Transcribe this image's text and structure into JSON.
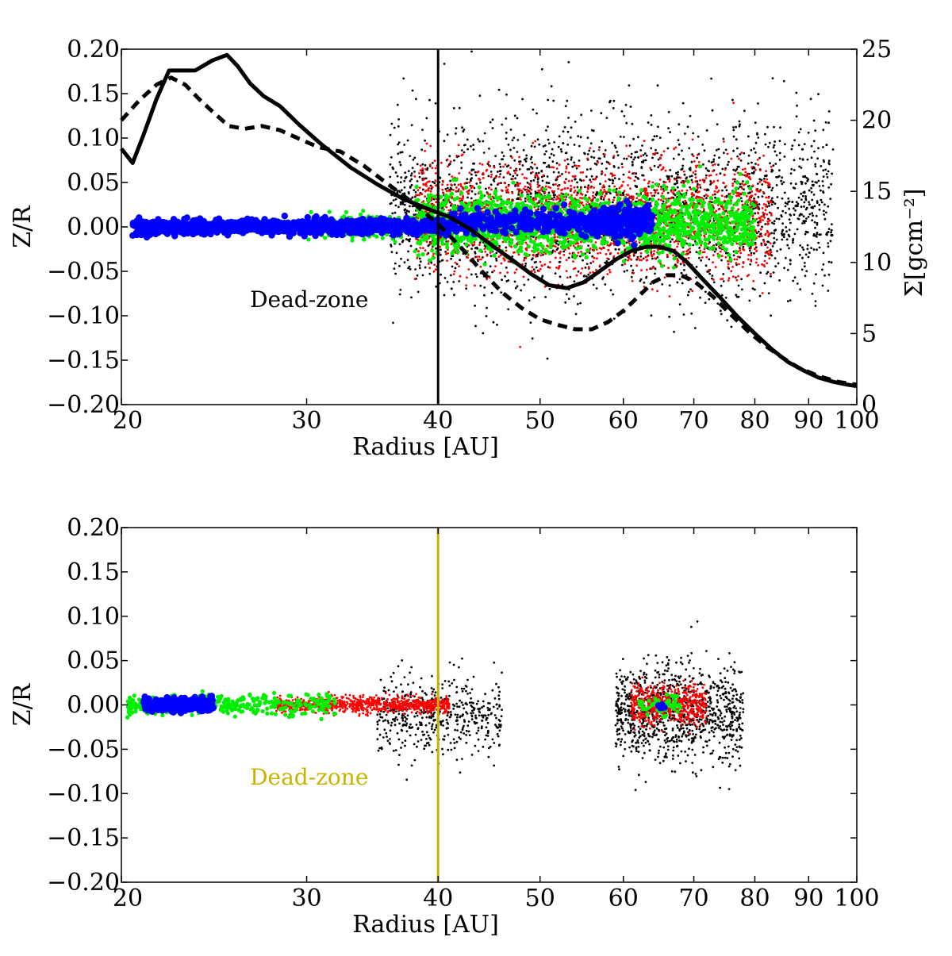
{
  "chart_data": [
    {
      "type": "scatter",
      "title": "",
      "xlabel": "Radius [AU]",
      "ylabel": "Z/R",
      "y2label": "Σ[gcm⁻²]",
      "x_scale": "log",
      "xlim": [
        20,
        100
      ],
      "ylim": [
        -0.2,
        0.2
      ],
      "y2lim": [
        0,
        25
      ],
      "x_ticks": [
        20,
        30,
        40,
        50,
        60,
        70,
        80,
        90,
        100
      ],
      "x_tick_labels": [
        "20",
        "30",
        "40",
        "50",
        "60",
        "70",
        "80",
        "90",
        "100"
      ],
      "y_ticks": [
        0.2,
        0.15,
        0.1,
        0.05,
        0.0,
        -0.05,
        -0.1,
        -0.15,
        -0.2
      ],
      "y_tick_labels": [
        "0.20",
        "0.15",
        "0.10",
        "0.05",
        "0.00",
        "−0.05",
        "−0.10",
        "−0.15",
        "−0.20"
      ],
      "y2_ticks": [
        25,
        20,
        15,
        10,
        5,
        0
      ],
      "y2_tick_labels": [
        "25",
        "20",
        "15",
        "10",
        "5",
        "0"
      ],
      "grid": false,
      "annotation": {
        "text": "Dead-zone",
        "x": 26.5,
        "y": -0.09,
        "color": "#000000"
      },
      "vline": {
        "x": 40,
        "color": "#000000"
      },
      "lines": [
        {
          "style": "solid",
          "color": "#000000",
          "axis": "y2",
          "x": [
            20,
            20.5,
            21,
            21.6,
            22.2,
            22.7,
            23.5,
            24.4,
            25.2,
            25.8,
            26.5,
            27.3,
            28.3,
            29.5,
            31,
            33,
            35,
            37,
            39,
            41,
            43,
            45,
            47,
            49,
            51,
            53,
            55,
            57,
            59,
            61,
            63,
            65,
            67,
            69,
            71,
            74,
            77,
            80,
            83,
            86,
            89,
            92,
            95,
            98,
            100
          ],
          "values": [
            18,
            17,
            19,
            21.5,
            23.5,
            23.5,
            23.5,
            24.2,
            24.6,
            23.8,
            22.6,
            21.7,
            21,
            19.7,
            18.3,
            16.7,
            15.5,
            14.5,
            13.8,
            13.2,
            12.3,
            11.2,
            10.2,
            9.2,
            8.4,
            8.2,
            8.6,
            9.4,
            10.2,
            10.8,
            11.1,
            11.1,
            10.8,
            10,
            9,
            7.6,
            6.2,
            5,
            3.9,
            3,
            2.4,
            1.9,
            1.6,
            1.4,
            1.3
          ]
        },
        {
          "style": "dashed",
          "color": "#000000",
          "axis": "y2",
          "x": [
            20,
            20.8,
            21.6,
            22.3,
            23,
            23.7,
            24.5,
            25.3,
            26.2,
            27.2,
            28.3,
            29.5,
            30.8,
            32.3,
            34,
            36,
            38,
            40,
            42,
            44,
            46,
            48,
            50,
            52,
            54,
            56,
            58,
            60,
            62,
            64,
            66,
            68,
            70,
            73,
            76,
            79,
            82,
            85,
            88,
            92,
            96,
            100
          ],
          "values": [
            20,
            21.4,
            22.5,
            23,
            22.5,
            21.5,
            20.5,
            19.6,
            19.4,
            19.6,
            19.3,
            18.7,
            18.1,
            17.8,
            16.8,
            15.4,
            14.1,
            12.7,
            11.1,
            9.4,
            7.9,
            6.8,
            6,
            5.6,
            5.3,
            5.3,
            5.8,
            6.6,
            7.6,
            8.6,
            9.1,
            9.1,
            8.7,
            7.6,
            6.3,
            5.1,
            4.1,
            3.3,
            2.6,
            2,
            1.6,
            1.4
          ]
        }
      ],
      "scatter_series": [
        {
          "color": "#000000",
          "size": "small",
          "clusters": [
            {
              "x_range": [
                36,
                95
              ],
              "y_center": 0.02,
              "y_spread": 0.09,
              "density": 2400
            }
          ]
        },
        {
          "color": "#ff0000",
          "size": "small",
          "clusters": [
            {
              "x_range": [
                38,
                83
              ],
              "y_center": 0.01,
              "y_spread": 0.055,
              "density": 2200
            }
          ]
        },
        {
          "color": "#00ee00",
          "size": "medium",
          "clusters": [
            {
              "x_range": [
                30,
                38
              ],
              "y_center": 0.0,
              "y_spread": 0.012,
              "density": 250
            },
            {
              "x_range": [
                38,
                80
              ],
              "y_center": 0.005,
              "y_spread": 0.03,
              "density": 1500
            }
          ]
        },
        {
          "color": "#0000ff",
          "size": "large",
          "clusters": [
            {
              "x_range": [
                20.5,
                41
              ],
              "y_center": 0.0,
              "y_spread": 0.007,
              "density": 1100
            },
            {
              "x_range": [
                41,
                63
              ],
              "y_center": 0.005,
              "y_spread": 0.012,
              "density": 350
            },
            {
              "x_range": [
                56,
                64
              ],
              "y_center": 0.005,
              "y_spread": 0.014,
              "density": 250
            }
          ]
        }
      ]
    },
    {
      "type": "scatter",
      "title": "",
      "xlabel": "Radius [AU]",
      "ylabel": "Z/R",
      "x_scale": "log",
      "xlim": [
        20,
        100
      ],
      "ylim": [
        -0.2,
        0.2
      ],
      "x_ticks": [
        20,
        30,
        40,
        50,
        60,
        70,
        80,
        90,
        100
      ],
      "x_tick_labels": [
        "20",
        "30",
        "40",
        "50",
        "60",
        "70",
        "80",
        "90",
        "100"
      ],
      "y_ticks": [
        0.2,
        0.15,
        0.1,
        0.05,
        0.0,
        -0.05,
        -0.1,
        -0.15,
        -0.2
      ],
      "y_tick_labels": [
        "0.20",
        "0.15",
        "0.10",
        "0.05",
        "0.00",
        "−0.05",
        "−0.10",
        "−0.15",
        "−0.20"
      ],
      "grid": false,
      "annotation": {
        "text": "Dead-zone",
        "x": 26.5,
        "y": -0.09,
        "color": "#c8b400"
      },
      "vline": {
        "x": 40,
        "color": "#c8b400"
      },
      "scatter_series": [
        {
          "color": "#000000",
          "size": "small",
          "clusters": [
            {
              "x_range": [
                35,
                46
              ],
              "y_center": -0.01,
              "y_spread": 0.04,
              "density": 500
            },
            {
              "x_range": [
                59,
                78
              ],
              "y_center": -0.01,
              "y_spread": 0.05,
              "density": 1000
            }
          ]
        },
        {
          "color": "#ff0000",
          "size": "small",
          "clusters": [
            {
              "x_range": [
                28,
                41
              ],
              "y_center": 0.0,
              "y_spread": 0.008,
              "density": 900
            },
            {
              "x_range": [
                61,
                72
              ],
              "y_center": 0.0,
              "y_spread": 0.02,
              "density": 600
            }
          ]
        },
        {
          "color": "#00ee00",
          "size": "medium",
          "clusters": [
            {
              "x_range": [
                20.2,
                32
              ],
              "y_center": 0.0,
              "y_spread": 0.01,
              "density": 350
            },
            {
              "x_range": [
                62,
                68
              ],
              "y_center": 0.0,
              "y_spread": 0.01,
              "density": 60
            }
          ]
        },
        {
          "color": "#0000ff",
          "size": "large",
          "clusters": [
            {
              "x_range": [
                21,
                24.5
              ],
              "y_center": 0.0,
              "y_spread": 0.007,
              "density": 300
            },
            {
              "x_range": [
                64,
                66
              ],
              "y_center": 0.0,
              "y_spread": 0.004,
              "density": 4
            }
          ]
        }
      ]
    }
  ]
}
